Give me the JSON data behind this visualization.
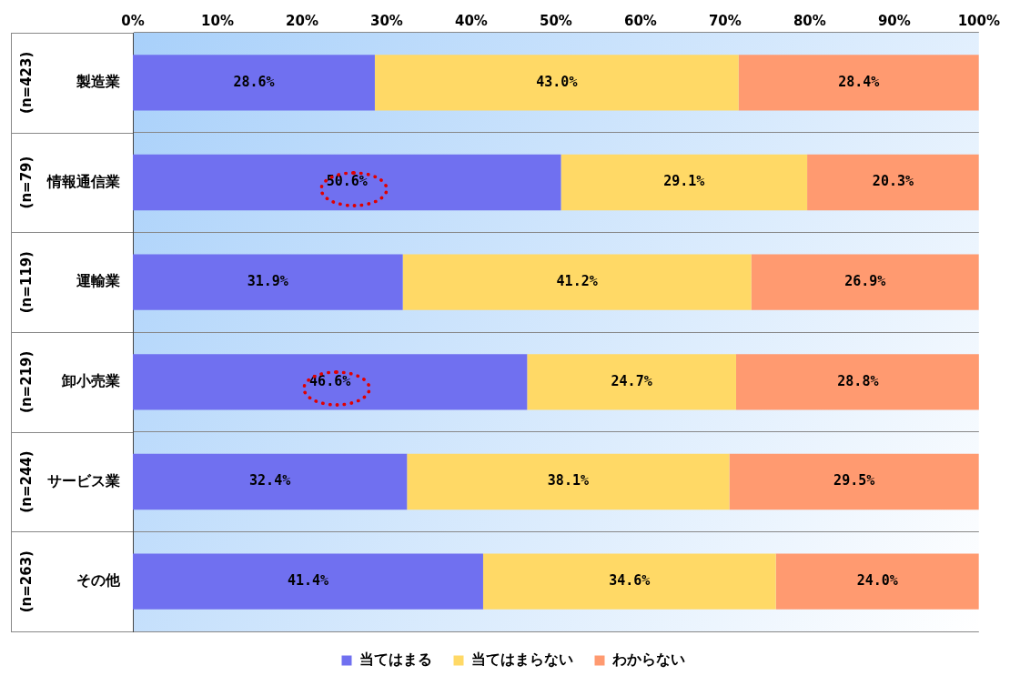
{
  "chart_data": {
    "type": "bar",
    "orientation": "horizontal",
    "stacked": true,
    "categories": [
      "製造業",
      "情報通信業",
      "運輸業",
      "卸小売業",
      "サービス業",
      "その他"
    ],
    "series": [
      {
        "name": "当てはまる",
        "color": "#7070f0",
        "values": [
          28.6,
          50.6,
          31.9,
          46.6,
          32.4,
          41.4
        ]
      },
      {
        "name": "当てはまらない",
        "color": "#ffd966",
        "values": [
          43.0,
          29.1,
          41.2,
          24.7,
          38.1,
          34.6
        ]
      },
      {
        "name": "わからない",
        "color": "#ff9a70",
        "values": [
          28.4,
          20.3,
          26.9,
          28.8,
          29.5,
          24.0
        ]
      }
    ],
    "xlim": [
      0,
      100
    ],
    "xticks": [
      {
        "value": 0,
        "label": "0%"
      },
      {
        "value": 10,
        "label": "10%"
      },
      {
        "value": 20,
        "label": "20%"
      },
      {
        "value": 30,
        "label": "30%"
      },
      {
        "value": 40,
        "label": "40%"
      },
      {
        "value": 50,
        "label": "50%"
      },
      {
        "value": 60,
        "label": "60%"
      },
      {
        "value": 70,
        "label": "70%"
      },
      {
        "value": 80,
        "label": "80%"
      },
      {
        "value": 90,
        "label": "90%"
      },
      {
        "value": 100,
        "label": "100%"
      }
    ],
    "value_labels": [
      [
        "28.6%",
        "50.6%",
        "31.9%",
        "46.6%",
        "32.4%",
        "41.4%"
      ],
      [
        "43.0%",
        "29.1%",
        "41.2%",
        "24.7%",
        "38.1%",
        "34.6%"
      ],
      [
        "28.4%",
        "20.3%",
        "26.9%",
        "28.8%",
        "29.5%",
        "24.0%"
      ]
    ],
    "annotations": [
      "(n=423)",
      "(n=79)",
      "(n=119)",
      "(n=219)",
      "(n=244)",
      "(n=263)"
    ],
    "grid": "y",
    "legend": "bottom"
  }
}
